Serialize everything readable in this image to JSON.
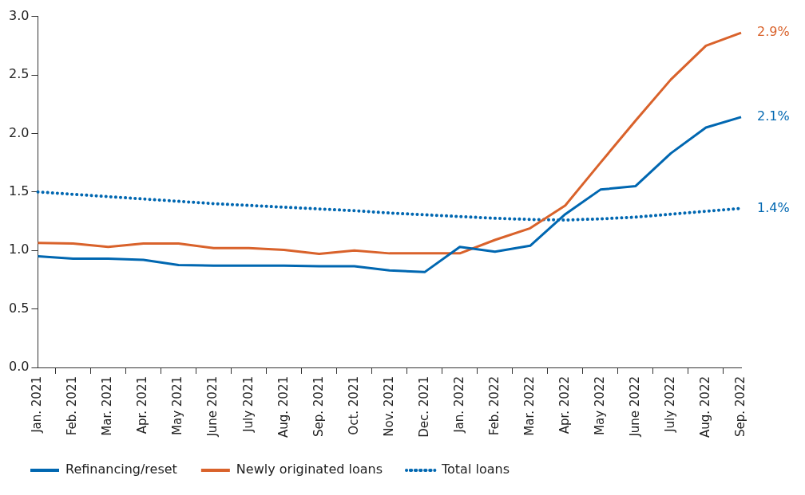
{
  "chart_data": {
    "type": "line",
    "categories": [
      "Jan. 2021",
      "Feb. 2021",
      "Mar. 2021",
      "Apr. 2021",
      "May 2021",
      "June 2021",
      "July 2021",
      "Aug. 2021",
      "Sep. 2021",
      "Oct. 2021",
      "Nov. 2021",
      "Dec. 2021",
      "Jan. 2022",
      "Feb. 2022",
      "Mar. 2022",
      "Apr. 2022",
      "May 2022",
      "June 2022",
      "July 2022",
      "Aug. 2022",
      "Sep. 2022"
    ],
    "series": [
      {
        "name": "Refinancing/reset",
        "color": "#0067b1",
        "line_style": "solid",
        "values": [
          0.95,
          0.93,
          0.93,
          0.92,
          0.875,
          0.87,
          0.87,
          0.87,
          0.865,
          0.865,
          0.83,
          0.815,
          1.03,
          0.99,
          1.04,
          1.31,
          1.52,
          1.55,
          1.83,
          2.05,
          2.14
        ]
      },
      {
        "name": "Newly originated loans",
        "color": "#d9622b",
        "line_style": "solid",
        "values": [
          1.065,
          1.06,
          1.03,
          1.06,
          1.06,
          1.02,
          1.02,
          1.005,
          0.97,
          1.0,
          0.975,
          0.975,
          0.975,
          1.09,
          1.19,
          1.385,
          1.75,
          2.11,
          2.46,
          2.75,
          2.86
        ]
      },
      {
        "name": "Total loans",
        "color": "#0067b1",
        "line_style": "dotted",
        "values": [
          1.5,
          1.48,
          1.46,
          1.44,
          1.42,
          1.4,
          1.385,
          1.37,
          1.355,
          1.34,
          1.32,
          1.305,
          1.29,
          1.275,
          1.265,
          1.26,
          1.27,
          1.285,
          1.31,
          1.335,
          1.36
        ]
      }
    ],
    "ylim": [
      0,
      3
    ],
    "yticks": [
      {
        "value": 0,
        "label": "0.0"
      },
      {
        "value": 0.5,
        "label": "0.5"
      },
      {
        "value": 1,
        "label": "1.0"
      },
      {
        "value": 1.5,
        "label": "1.5"
      },
      {
        "value": 2,
        "label": "2.0"
      },
      {
        "value": 2.5,
        "label": "2.5"
      },
      {
        "value": 3,
        "label": "3.0"
      }
    ],
    "grid": false,
    "legend": "bottom",
    "marker": "none",
    "annotations": [
      {
        "text": "2.9%",
        "x": "Sep. 2022",
        "y": 2.86
      },
      {
        "text": "2.1%",
        "x": "Sep. 2022",
        "y": 2.14
      },
      {
        "text": "1.4%",
        "x": "Sep. 2022",
        "y": 1.36
      }
    ]
  }
}
